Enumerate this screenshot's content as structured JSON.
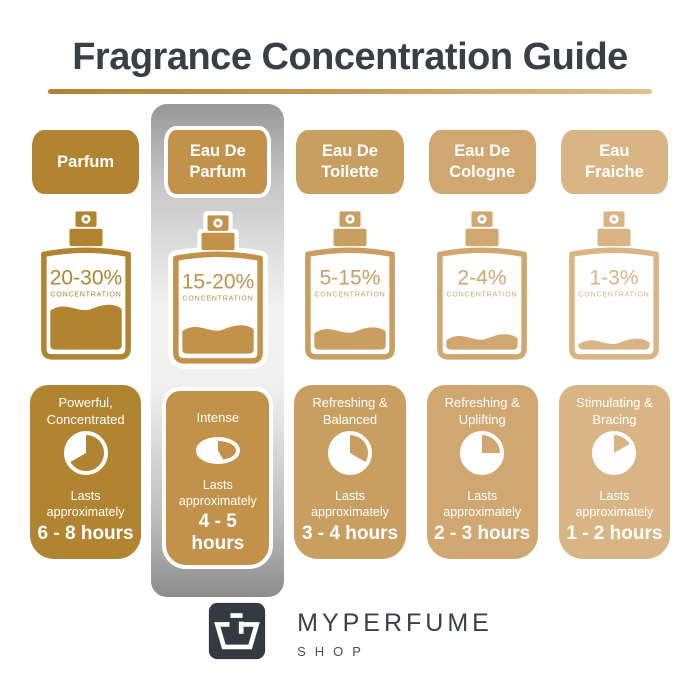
{
  "header": {
    "title": "Fragrance Concentration Guide"
  },
  "accent": {
    "title_color": "#3A3F46",
    "underline_gradient": [
      "#AF8232",
      "#DEC28C"
    ],
    "highlight_silver": "#9A9A9A",
    "logo_bg": "#343A42"
  },
  "columns": [
    {
      "name": "Parfum",
      "concentration": "20-30%",
      "concentration_label": "CONCENTRATION",
      "color": "#B08431",
      "fill_level": 0.5,
      "character": "Powerful,\nConcentrated",
      "clock_degrees": 240,
      "lasts_label": "Lasts\napproximately",
      "duration": "6 - 8 hours",
      "highlighted": false
    },
    {
      "name": "Eau De\nParfum",
      "concentration": "15-20%",
      "concentration_label": "CONCENTRATION",
      "color": "#C2924B",
      "fill_level": 0.31,
      "character": "Intense",
      "clock_degrees": 150,
      "lasts_label": "Lasts\napproximately",
      "duration": "4 - 5 hours",
      "highlighted": true
    },
    {
      "name": "Eau De\nToilette",
      "concentration": "5-15%",
      "concentration_label": "CONCENTRATION",
      "color": "#C99E61",
      "fill_level": 0.24,
      "character": "Refreshing &\nBalanced",
      "clock_degrees": 120,
      "lasts_label": "Lasts\napproximately",
      "duration": "3 - 4 hours",
      "highlighted": false
    },
    {
      "name": "Eau De\nCologne",
      "concentration": "2-4%",
      "concentration_label": "CONCENTRATION",
      "color": "#D0A770",
      "fill_level": 0.16,
      "character": "Refreshing &\nUplifting",
      "clock_degrees": 90,
      "lasts_label": "Lasts\napproximately",
      "duration": "2 - 3 hours",
      "highlighted": false
    },
    {
      "name": "Eau\nFraiche",
      "concentration": "1-3%",
      "concentration_label": "CONCENTRATION",
      "color": "#D9B586",
      "fill_level": 0.11,
      "character": "Stimulating &\nBracing",
      "clock_degrees": 60,
      "lasts_label": "Lasts\napproximately",
      "duration": "1 - 2 hours",
      "highlighted": false
    }
  ],
  "footer": {
    "brand": "MYPERFUME",
    "sub": "SHOP"
  }
}
